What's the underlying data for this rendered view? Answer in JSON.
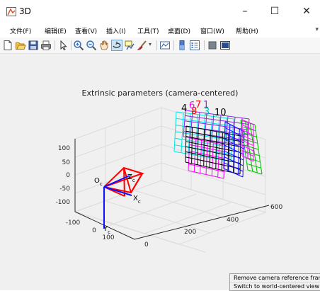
{
  "window": {
    "title": "3D",
    "minimize_glyph": "–",
    "maximize_glyph": "☐",
    "close_glyph": "✕"
  },
  "menu": {
    "items": [
      {
        "label": "文件(F)"
      },
      {
        "label": "编辑(E)"
      },
      {
        "label": "查看(V)"
      },
      {
        "label": "插入(I)"
      },
      {
        "label": "工具(T)"
      },
      {
        "label": "桌面(D)"
      },
      {
        "label": "窗口(W)"
      },
      {
        "label": "帮助(H)"
      }
    ],
    "overflow_glyph": "▾"
  },
  "toolbar": {
    "buttons": [
      "new-figure-icon",
      "open-file-icon",
      "save-icon",
      "print-icon",
      "pointer-icon",
      "zoom-in-icon",
      "zoom-out-icon",
      "pan-icon",
      "rotate-3d-icon",
      "data-cursor-icon",
      "brush-icon",
      "link-plot-icon",
      "colorbar-icon",
      "legend-icon",
      "hide-plot-tools-icon",
      "show-plot-tools-icon"
    ]
  },
  "plot": {
    "title": "Extrinsic parameters (camera-centered)",
    "z_ticks": [
      "100",
      "50",
      "0",
      "-50",
      "-100"
    ],
    "x_ticks": [
      "-100",
      "0",
      "100"
    ],
    "y_ticks": [
      "0",
      "200",
      "400",
      "600"
    ],
    "camera_labels": {
      "oc": "O",
      "oc_sub": "c",
      "zc": "Z",
      "zc_sub": "c",
      "xc": "X",
      "xc_sub": "c",
      "yc": "Y",
      "yc_sub": "c"
    },
    "board_labels": [
      "4",
      "6",
      "7",
      "1",
      "8",
      "3",
      "10"
    ]
  },
  "context_menu": {
    "items": [
      {
        "label": "Remove camera reference frame"
      },
      {
        "label": "Switch to world-centered view"
      }
    ]
  }
}
